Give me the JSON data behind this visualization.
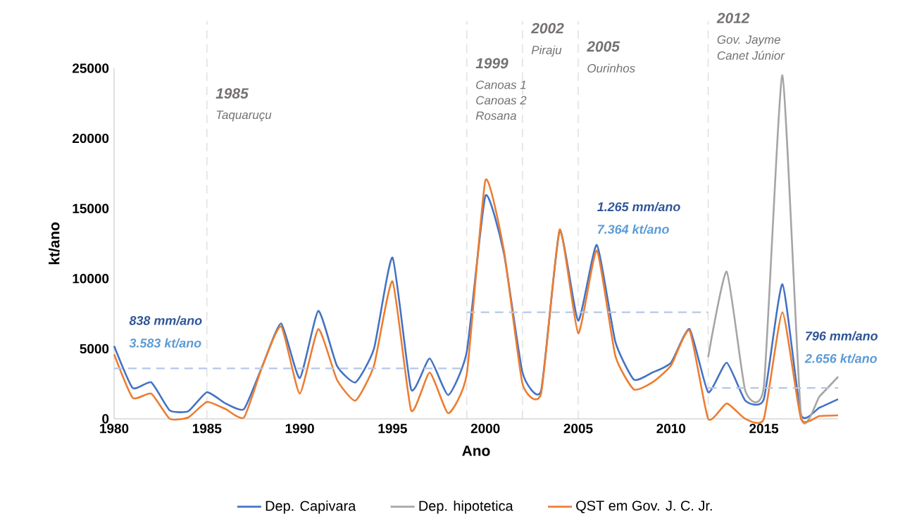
{
  "chart_data": {
    "type": "line",
    "xlabel": "Ano",
    "ylabel": "kt/ano",
    "x": [
      1980,
      1981,
      1982,
      1983,
      1984,
      1985,
      1986,
      1987,
      1988,
      1989,
      1990,
      1991,
      1992,
      1993,
      1994,
      1995,
      1996,
      1997,
      1998,
      1999,
      2000,
      2001,
      2002,
      2003,
      2004,
      2005,
      2006,
      2007,
      2008,
      2009,
      2010,
      2011,
      2012,
      2013,
      2014,
      2015,
      2016,
      2017,
      2018,
      2019
    ],
    "series": [
      {
        "name": "Dep. Capivara",
        "color": "#4472c4",
        "values": [
          5200,
          2200,
          2600,
          600,
          550,
          1900,
          1100,
          700,
          3800,
          6800,
          2900,
          7700,
          3800,
          2600,
          5000,
          11500,
          2100,
          4300,
          1700,
          4800,
          15900,
          11800,
          3300,
          2000,
          13400,
          7000,
          12400,
          5500,
          2800,
          3300,
          4000,
          6400,
          1900,
          4000,
          1300,
          1400,
          9600,
          300,
          800,
          1400
        ]
      },
      {
        "name": "Dep. hipotetica",
        "color": "#a5a5a5",
        "x": [
          2012,
          2013,
          2014,
          2015,
          2016,
          2017,
          2018,
          2019
        ],
        "values": [
          4400,
          10500,
          2000,
          2300,
          24500,
          300,
          1600,
          3000
        ]
      },
      {
        "name": "QST em Gov. J. C. Jr.",
        "color": "#ed7d31",
        "values": [
          4600,
          1500,
          1800,
          0,
          100,
          1200,
          700,
          100,
          3800,
          6600,
          1800,
          6400,
          2800,
          1300,
          3800,
          9800,
          600,
          3300,
          400,
          3200,
          17000,
          12000,
          2500,
          1800,
          13500,
          6100,
          12000,
          4500,
          2100,
          2600,
          3800,
          6300,
          0,
          1100,
          0,
          0,
          7600,
          0,
          200,
          250
        ]
      },
      {
        "color": "#b4c7e7",
        "line_style": "dashed",
        "x": [
          1980,
          1999
        ],
        "values": [
          3600,
          3600
        ]
      },
      {
        "color": "#b4c7e7",
        "line_style": "dashed",
        "x": [
          1999,
          2012
        ],
        "values": [
          7600,
          7600
        ]
      },
      {
        "color": "#b4c7e7",
        "line_style": "dashed",
        "x": [
          2012,
          2019
        ],
        "values": [
          2200,
          2200
        ]
      }
    ],
    "xlim": [
      1980,
      2019
    ],
    "ylim": [
      0,
      25000
    ],
    "xticks": [
      1980,
      1985,
      1990,
      1995,
      2000,
      2005,
      2010,
      2015
    ],
    "yticks": [
      0,
      5000,
      10000,
      15000,
      20000,
      25000
    ],
    "ref_lines": [
      {
        "axis": "x",
        "value": 1985,
        "label": "1985",
        "color": "#d9d9d9",
        "line_style": "dashed"
      },
      {
        "axis": "x",
        "value": 1999,
        "label": "1999",
        "color": "#d9d9d9",
        "line_style": "dashed"
      },
      {
        "axis": "x",
        "value": 2002,
        "label": "2002",
        "color": "#d9d9d9",
        "line_style": "dashed"
      },
      {
        "axis": "x",
        "value": 2005,
        "label": "2005",
        "color": "#d9d9d9",
        "line_style": "dashed"
      },
      {
        "axis": "x",
        "value": 2012,
        "label": "2012",
        "color": "#d9d9d9",
        "line_style": "dashed"
      }
    ],
    "annotations": [
      {
        "text": "Taquaruçu",
        "x": 1985
      },
      {
        "text": "Canoas 1",
        "x": 1999
      },
      {
        "text": "Canoas 2",
        "x": 1999
      },
      {
        "text": "Rosana",
        "x": 1999
      },
      {
        "text": "Piraju",
        "x": 2002
      },
      {
        "text": "Ourinhos",
        "x": 2005
      },
      {
        "text": "Gov. Jayme",
        "x": 2012
      },
      {
        "text": "Canet Júnior",
        "x": 2012
      },
      "838 mm/ano",
      "3.583 kt/ano",
      "1.265 mm/ano",
      "7.364 kt/ano",
      "796 mm/ano",
      "2.656 kt/ano"
    ],
    "legend": "bottom",
    "marker": "none",
    "line_style": "solid"
  }
}
